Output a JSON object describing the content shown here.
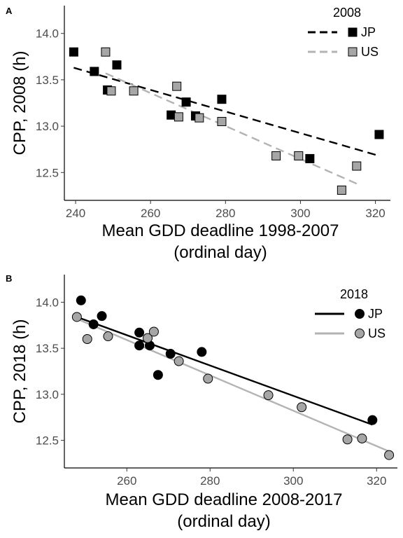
{
  "colors": {
    "jp": "#000000",
    "us": "#b3b3b3",
    "us_point": "#a6a6a6",
    "axis": "#000000",
    "tick_text": "#4d4d4d"
  },
  "chart_data": [
    {
      "panel": "A",
      "type": "scatter",
      "marker": "square",
      "line_style": "dashed",
      "xlabel": [
        "Mean GDD deadline 1998-2007",
        "(ordinal day)"
      ],
      "ylabel": "CPP, 2008 (h)",
      "xlim": [
        237,
        324
      ],
      "ylim": [
        12.2,
        14.3
      ],
      "xticks": [
        240,
        260,
        280,
        300,
        320
      ],
      "yticks": [
        12.5,
        13.0,
        13.5,
        14.0
      ],
      "ytick_labels": [
        "12.5",
        "13.0",
        "13.5",
        "14.0"
      ],
      "grid": false,
      "legend": {
        "title": "2008",
        "position": "top-right"
      },
      "series": [
        {
          "name": "JP",
          "x": [
            239.5,
            245,
            248.5,
            251,
            265.5,
            269.5,
            272,
            279,
            302.5,
            321
          ],
          "y": [
            13.8,
            13.59,
            13.39,
            13.66,
            13.12,
            13.26,
            13.11,
            13.29,
            12.65,
            12.91
          ],
          "fit": {
            "x": [
              239.5,
              321
            ],
            "y": [
              13.63,
              12.68
            ]
          }
        },
        {
          "name": "US",
          "x": [
            248,
            249.5,
            255.5,
            267,
            267.5,
            273,
            279,
            293.5,
            299.5,
            311,
            315
          ],
          "y": [
            13.8,
            13.38,
            13.38,
            13.43,
            13.1,
            13.09,
            13.05,
            12.68,
            12.68,
            12.31,
            12.57
          ],
          "fit": {
            "x": [
              248,
              315
            ],
            "y": [
              13.57,
              12.38
            ]
          }
        }
      ]
    },
    {
      "panel": "B",
      "type": "scatter",
      "marker": "circle",
      "line_style": "solid",
      "xlabel": [
        "Mean GDD deadline 2008-2017",
        "(ordinal day)"
      ],
      "ylabel": "CPP, 2018 (h)",
      "xlim": [
        245,
        325
      ],
      "ylim": [
        12.2,
        14.3
      ],
      "xticks": [
        260,
        280,
        300,
        320
      ],
      "yticks": [
        12.5,
        13.0,
        13.5,
        14.0
      ],
      "ytick_labels": [
        "12.5",
        "13.0",
        "13.5",
        "14.0"
      ],
      "grid": false,
      "legend": {
        "title": "2018",
        "position": "top-right"
      },
      "series": [
        {
          "name": "JP",
          "x": [
            249,
            252,
            254,
            263,
            263,
            265.5,
            267.5,
            270.5,
            278,
            319
          ],
          "y": [
            14.02,
            13.76,
            13.85,
            13.67,
            13.53,
            13.53,
            13.21,
            13.44,
            13.46,
            12.72
          ],
          "fit": {
            "x": [
              248,
              319
            ],
            "y": [
              13.84,
              12.67
            ]
          }
        },
        {
          "name": "US",
          "x": [
            248,
            250.5,
            255.5,
            265,
            266.5,
            272.5,
            279.5,
            294,
            302,
            313,
            316.5,
            323
          ],
          "y": [
            13.84,
            13.6,
            13.63,
            13.61,
            13.68,
            13.36,
            13.17,
            12.99,
            12.86,
            12.51,
            12.52,
            12.34
          ],
          "fit": {
            "x": [
              248,
              323
            ],
            "y": [
              13.82,
              12.38
            ]
          }
        }
      ]
    }
  ]
}
